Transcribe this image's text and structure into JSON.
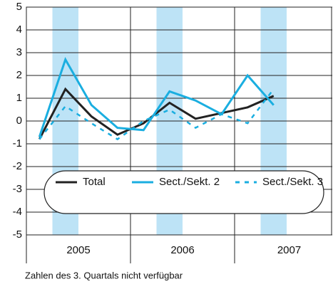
{
  "chart_data": {
    "type": "line",
    "categories": [
      null,
      null,
      null,
      null,
      null,
      null,
      null,
      null,
      null,
      null
    ],
    "year_labels": [
      "2005",
      "2006",
      "2007"
    ],
    "series": [
      {
        "name": "Total",
        "color": "#222222",
        "dash": false,
        "values": [
          -0.8,
          1.4,
          0.2,
          -0.6,
          -0.1,
          0.8,
          0.1,
          0.35,
          0.6,
          1.1
        ]
      },
      {
        "name": "Sect./Sekt. 2",
        "color": "#1aaee0",
        "dash": false,
        "values": [
          -0.7,
          2.7,
          0.7,
          -0.3,
          -0.4,
          1.3,
          0.9,
          0.3,
          2.0,
          0.7
        ]
      },
      {
        "name": "Sect./Sekt. 3",
        "color": "#1aaee0",
        "dash": true,
        "values": [
          -0.8,
          0.65,
          -0.1,
          -0.8,
          0.0,
          0.5,
          -0.3,
          0.3,
          -0.1,
          1.4
        ]
      }
    ],
    "ylim": [
      -5,
      5
    ],
    "yticks": [
      -5,
      -4,
      -3,
      -2,
      -1,
      0,
      1,
      2,
      3,
      4,
      5
    ],
    "grid": true,
    "note": "Zahlen des 3. Quartals nicht verfügbar"
  }
}
